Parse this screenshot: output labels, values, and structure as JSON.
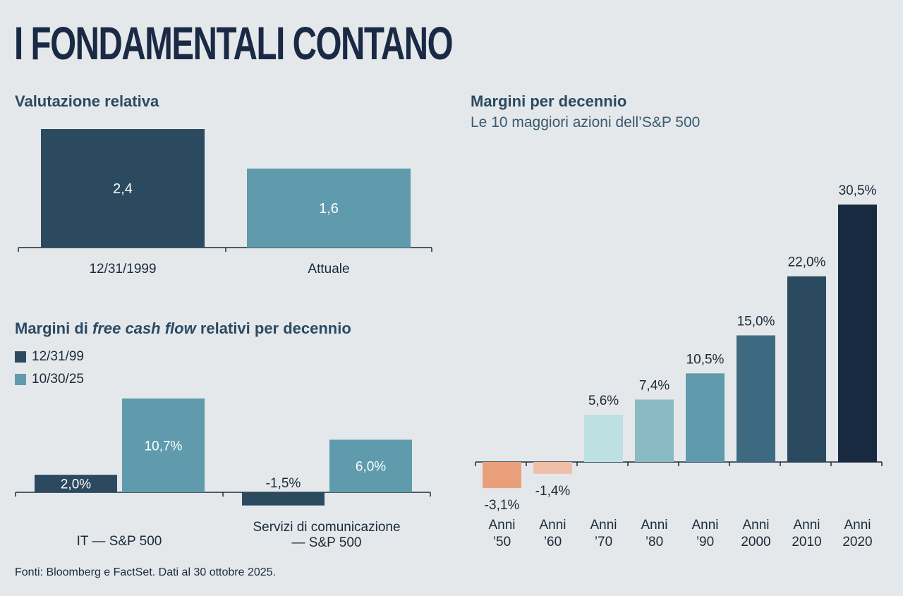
{
  "title": "I FONDAMENTALI CONTANO",
  "footnote": "Fonti: Bloomberg e FactSet. Dati al 30 ottobre 2025.",
  "colors": {
    "dark": "#2b4a5f",
    "teal": "#5f9bad",
    "navy": "#172a40",
    "background": "#e4e8eb"
  },
  "chart_data": [
    {
      "id": "valutazione",
      "type": "bar",
      "title": "Valutazione relativa",
      "categories": [
        "12/31/1999",
        "Attuale"
      ],
      "values": [
        2.4,
        1.6
      ],
      "labels": [
        "2,4",
        "1,6"
      ],
      "colors": [
        "#2b4a5f",
        "#5f9bad"
      ],
      "ylim": [
        0,
        2.4
      ]
    },
    {
      "id": "fcf",
      "type": "bar",
      "title_parts": [
        "Margini di ",
        "free cash flow",
        " relativi per decennio"
      ],
      "categories": [
        "IT — S&P 500",
        "Servizi di comunicazione\n— S&P 500"
      ],
      "categories_lines": [
        [
          "IT — S&P 500"
        ],
        [
          "Servizi di comunicazione",
          "— S&P 500"
        ]
      ],
      "series": [
        {
          "name": "12/31/99",
          "color": "#2b4a5f",
          "values": [
            2.0,
            -1.5
          ],
          "labels": [
            "2,0%",
            "-1,5%"
          ]
        },
        {
          "name": "10/30/25",
          "color": "#5f9bad",
          "values": [
            10.7,
            6.0
          ],
          "labels": [
            "10,7%",
            "6,0%"
          ]
        }
      ],
      "ylim": [
        -1.5,
        10.7
      ]
    },
    {
      "id": "margini",
      "type": "bar",
      "title": "Margini per decennio",
      "subtitle": "Le 10 maggiori azioni dell’S&P 500",
      "categories_lines": [
        [
          "Anni",
          "’50"
        ],
        [
          "Anni",
          "’60"
        ],
        [
          "Anni",
          "’70"
        ],
        [
          "Anni",
          "’80"
        ],
        [
          "Anni",
          "’90"
        ],
        [
          "Anni",
          "2000"
        ],
        [
          "Anni",
          "2010"
        ],
        [
          "Anni",
          "2020"
        ]
      ],
      "values": [
        -3.1,
        -1.4,
        5.6,
        7.4,
        10.5,
        15.0,
        22.0,
        30.5
      ],
      "labels": [
        "-3,1%",
        "-1,4%",
        "5,6%",
        "7,4%",
        "10,5%",
        "15,0%",
        "22,0%",
        "30,5%"
      ],
      "colors": [
        "#e9a07a",
        "#f0bfa8",
        "#bde0e2",
        "#8abac4",
        "#5f9bad",
        "#3d6a80",
        "#2b4a5f",
        "#172a40"
      ],
      "ylim": [
        -3.1,
        30.5
      ]
    }
  ]
}
